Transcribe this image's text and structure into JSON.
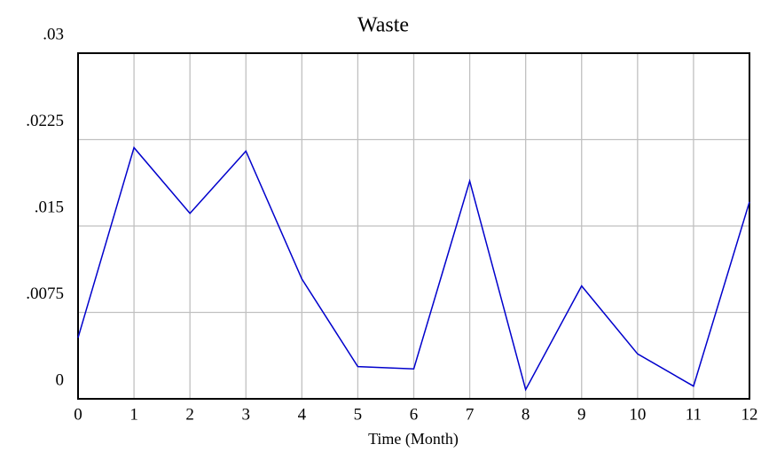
{
  "chart_data": {
    "type": "line",
    "title": "Waste",
    "xlabel": "Time (Month)",
    "x": [
      0,
      1,
      2,
      3,
      4,
      5,
      6,
      7,
      8,
      9,
      10,
      11,
      12
    ],
    "series": [
      {
        "name": "Waste",
        "color": "#0000cc",
        "values": [
          0.0053,
          0.0218,
          0.0161,
          0.0215,
          0.0104,
          0.0028,
          0.0026,
          0.0189,
          0.0008,
          0.0098,
          0.0039,
          0.0011,
          0.0171
        ]
      }
    ],
    "xlim": [
      0,
      12
    ],
    "xticks": [
      0,
      1,
      2,
      3,
      4,
      5,
      6,
      7,
      8,
      9,
      10,
      11,
      12
    ],
    "ylim": [
      0,
      0.03
    ],
    "yticks": [
      0,
      {
        "value": 0.0075,
        "label": ".0075"
      },
      {
        "value": 0.015,
        "label": ".015"
      },
      {
        "value": 0.0225,
        "label": ".0225"
      },
      {
        "value": 0.03,
        "label": ".03"
      }
    ],
    "grid": true
  }
}
